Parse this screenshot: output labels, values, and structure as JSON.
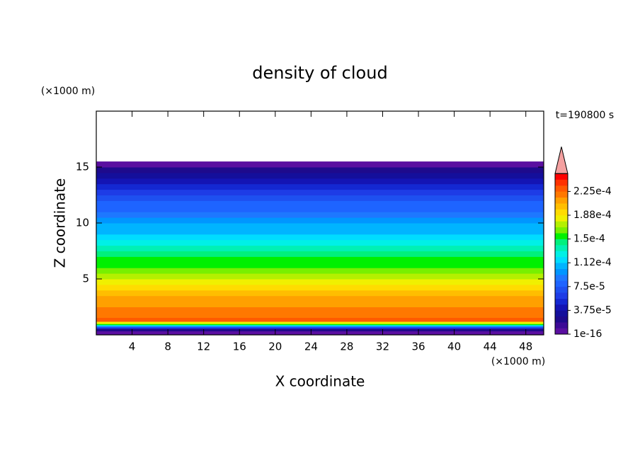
{
  "chart_data": {
    "type": "contour",
    "title": "density of cloud",
    "x_label": "X coordinate",
    "y_label": "Z coordinate",
    "x_unit": "(×1000 m)",
    "y_unit": "(×1000 m)",
    "time_label": "t=190800 s",
    "xlim": [
      0,
      50
    ],
    "ylim": [
      0,
      20
    ],
    "xticks": [
      4,
      8,
      12,
      16,
      20,
      24,
      28,
      32,
      36,
      40,
      44,
      48
    ],
    "yticks": [
      5,
      10,
      15
    ],
    "z": [
      0.2,
      0.5,
      0.65,
      0.75,
      0.85,
      0.95,
      1.05,
      1.35,
      1.75,
      2.25,
      2.75,
      3.25,
      3.75,
      4.25,
      4.75,
      5.25,
      5.75,
      6.25,
      6.75,
      7.25,
      7.75,
      8.25,
      8.75,
      9.25,
      9.75,
      10.25,
      10.75,
      11.25,
      11.75,
      12.25,
      12.75,
      13.25,
      13.75,
      14.25,
      14.75,
      15.25
    ],
    "values": [
      4.7e-06,
      2.81e-05,
      5.63e-05,
      8.44e-05,
      0.0001172,
      0.000151,
      0.0001828,
      0.0002278,
      0.0002241,
      0.0002194,
      0.0002138,
      0.000207,
      0.0001988,
      0.0001903,
      0.0001819,
      0.0001744,
      0.0001659,
      0.0001575,
      0.000151,
      0.0001425,
      0.0001341,
      0.0001266,
      0.0001172,
      0.0001106,
      0.000105,
      9.84e-05,
      8.91e-05,
      8.25e-05,
      7.6e-05,
      7.03e-05,
      6.09e-05,
      5.16e-05,
      4.22e-05,
      3.28e-05,
      2.34e-05,
      4.7e-06
    ],
    "levels": [
      1e-16,
      9.375e-06,
      1.875e-05,
      2.8125e-05,
      3.75e-05,
      4.6875e-05,
      5.625e-05,
      6.5625e-05,
      7.5e-05,
      8.4375e-05,
      9.375e-05,
      0.000103125,
      0.0001125,
      0.000121875,
      0.00013125,
      0.000140625,
      0.00015,
      0.000159375,
      0.00016875,
      0.000178125,
      0.0001875,
      0.000196875,
      0.00020625,
      0.000215625,
      0.000225,
      0.000234375,
      0.00024375,
      0.000253125
    ],
    "colors": [
      "#5a0fa0",
      "#3c0a96",
      "#1e0a8c",
      "#140f9b",
      "#1414b4",
      "#1428d2",
      "#1e3ce6",
      "#1e50f0",
      "#1e64ff",
      "#1e78ff",
      "#0096ff",
      "#00b4ff",
      "#00dcff",
      "#00f0e6",
      "#00f0b4",
      "#00f07d",
      "#00f000",
      "#78f000",
      "#b4f000",
      "#f0f000",
      "#ffdc00",
      "#ffbe00",
      "#ffa000",
      "#ff7800",
      "#ff5a00",
      "#ff3200",
      "#ff0000"
    ],
    "extend_color": "#f4a0a0",
    "colorbar_ticks": [
      1e-16,
      {
        "value": 3.75e-05,
        "label": "3.75e-5"
      },
      {
        "value": 7.5e-05,
        "label": "7.5e-5"
      },
      {
        "value": 0.0001125,
        "label": "1.12e-4"
      },
      {
        "value": 0.00015,
        "label": "1.5e-4"
      },
      {
        "value": 0.0001875,
        "label": "1.88e-4"
      },
      {
        "value": 0.000225,
        "label": "2.25e-4"
      }
    ]
  }
}
